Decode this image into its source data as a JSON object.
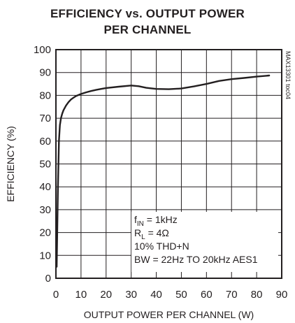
{
  "chart_data": {
    "type": "line",
    "title_line1": "EFFICIENCY vs. OUTPUT POWER",
    "title_line2": "PER CHANNEL",
    "xlabel": "OUTPUT POWER PER CHANNEL (W)",
    "ylabel": "EFFICIENCY (%)",
    "xlim": [
      0,
      90
    ],
    "ylim": [
      0,
      100
    ],
    "xticks": [
      0,
      10,
      20,
      30,
      40,
      50,
      60,
      70,
      80,
      90
    ],
    "yticks": [
      0,
      10,
      20,
      30,
      40,
      50,
      60,
      70,
      80,
      90,
      100
    ],
    "grid": true,
    "annotations": [
      {
        "main": "f",
        "sub": "IN",
        "rest": " = 1kHz"
      },
      {
        "main": "R",
        "sub": "L",
        "rest": " = 4Ω"
      },
      {
        "main": "10% THD+N",
        "sub": "",
        "rest": ""
      },
      {
        "main": "BW = 22Hz TO 20kHz AES1",
        "sub": "",
        "rest": ""
      }
    ],
    "code_label": "MAX13301 toc04",
    "series": [
      {
        "x": [
          0.3,
          0.8,
          1.2,
          1.6,
          2.0,
          2.5,
          3.0,
          4.0,
          5.0,
          6.0,
          7.0,
          8.0,
          10,
          12,
          14,
          16,
          18,
          20,
          25,
          30,
          33,
          36,
          40,
          45,
          50,
          55,
          60,
          65,
          70,
          75,
          80,
          85
        ],
        "y": [
          5,
          40,
          60,
          67,
          70,
          72,
          73.5,
          75.5,
          77,
          78.2,
          79,
          79.7,
          80.6,
          81.3,
          81.9,
          82.4,
          82.8,
          83.2,
          83.8,
          84.3,
          84.0,
          83.3,
          82.8,
          82.7,
          83.0,
          83.9,
          85.0,
          86.3,
          87.1,
          87.6,
          88.2,
          88.7
        ]
      }
    ]
  }
}
